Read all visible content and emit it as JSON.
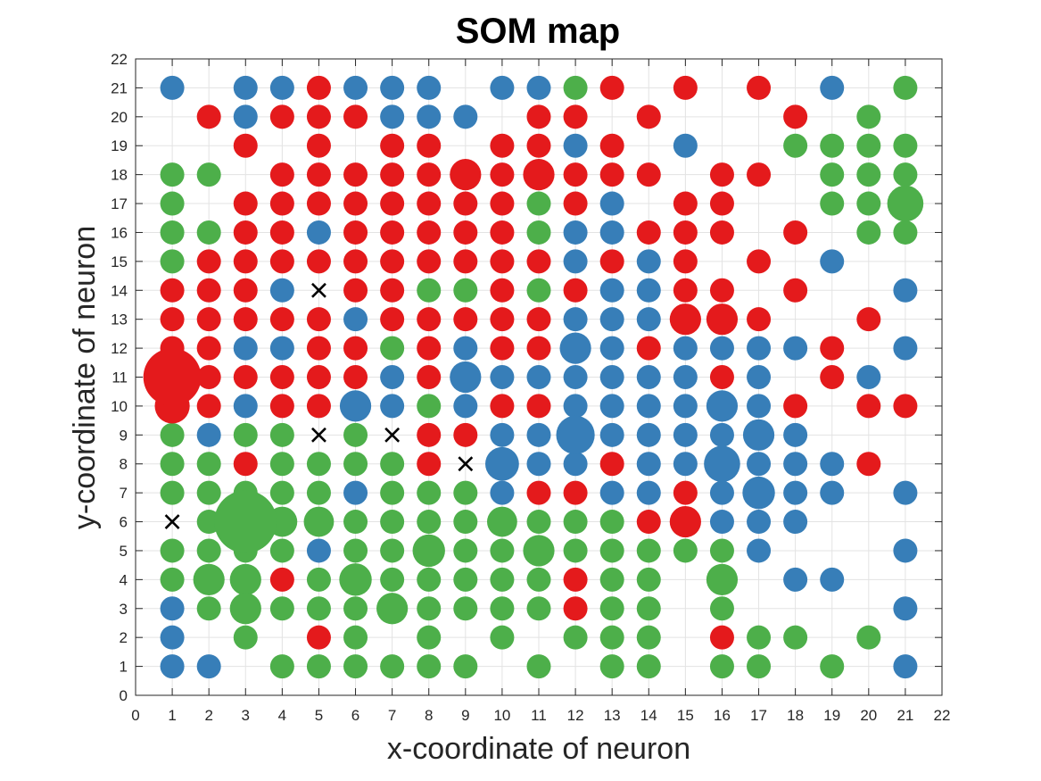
{
  "chart_data": {
    "type": "scatter",
    "title": "SOM map",
    "xlabel": "x-coordinate of neuron",
    "ylabel": "y-coordinate of neuron",
    "xlim": [
      0,
      22
    ],
    "ylim": [
      0,
      22
    ],
    "xticks": [
      0,
      1,
      2,
      3,
      4,
      5,
      6,
      7,
      8,
      9,
      10,
      11,
      12,
      13,
      14,
      15,
      16,
      17,
      18,
      19,
      20,
      21,
      22
    ],
    "yticks": [
      0,
      1,
      2,
      3,
      4,
      5,
      6,
      7,
      8,
      9,
      10,
      11,
      12,
      13,
      14,
      15,
      16,
      17,
      18,
      19,
      20,
      21,
      22
    ],
    "grid": true,
    "colors": {
      "R": "#e41a1c",
      "B": "#377eb8",
      "G": "#4daf4a",
      "x_marker": "#000000"
    },
    "class_rows": [
      {
        "y": 21,
        "cells": "B.BBRBBB.BBGR.R.R.B.G"
      },
      {
        "y": 20,
        "cells": ".RBRRRBBB.RR.R...R.G."
      },
      {
        "y": 19,
        "cells": "..R.R.RR.RRBR.B..GGGG"
      },
      {
        "y": 18,
        "cells": "GG.RRRRRRRRRRR.RR.GGG"
      },
      {
        "y": 17,
        "cells": "G.RRRRRRRRGRB.RR..GGG"
      },
      {
        "y": 16,
        "cells": "GGRRBRRRRRGBBRRR.R.GG"
      },
      {
        "y": 15,
        "cells": "GRRRRRRRRRRBRBR.R.B.."
      },
      {
        "y": 14,
        "cells": "RRRB.RRGGRGRBBRR.R..B"
      },
      {
        "y": 13,
        "cells": "RRRRRBRRRRRBBBRRR..R."
      },
      {
        "y": 12,
        "cells": "RRBBRRGRBRRBBRBBBBR.B"
      },
      {
        "y": 11,
        "cells": "RRRRRRBRBBBBBBBRB.RB."
      },
      {
        "y": 10,
        "cells": "RRBRRBBGBRRBBBBBBR.RR"
      },
      {
        "y": 9,
        "cells": "GBGG.G.RRBBBBBBBBB..."
      },
      {
        "y": 8,
        "cells": "GGRGGGGR.BBBRBBBBBBR."
      },
      {
        "y": 7,
        "cells": "GGGGGBGGGBRRBBRBBBB.B"
      },
      {
        "y": 6,
        "cells": ".GGGGGGGGGGGGRRBBB..."
      },
      {
        "y": 5,
        "cells": "GGGGBGGGGGGGGGGGB...B"
      },
      {
        "y": 4,
        "cells": "GGGRGGGGGGGRGG.G.BB.."
      },
      {
        "y": 3,
        "cells": "BGGGGGGGGGGRGG.G....B"
      },
      {
        "y": 2,
        "cells": "B.G.RG.G.G.GGG.RGG.G."
      },
      {
        "y": 1,
        "cells": "BB.GGGGGG.G.GG.GG.G.B"
      }
    ],
    "large_markers": [
      {
        "x": 1,
        "y": 11,
        "scale": 2.4
      },
      {
        "x": 3,
        "y": 6,
        "scale": 2.6
      },
      {
        "x": 1,
        "y": 10,
        "scale": 1.45
      },
      {
        "x": 9,
        "y": 18,
        "scale": 1.3
      },
      {
        "x": 11,
        "y": 18,
        "scale": 1.3
      },
      {
        "x": 21,
        "y": 17,
        "scale": 1.5
      },
      {
        "x": 15,
        "y": 13,
        "scale": 1.3
      },
      {
        "x": 16,
        "y": 13,
        "scale": 1.3
      },
      {
        "x": 12,
        "y": 12,
        "scale": 1.3
      },
      {
        "x": 9,
        "y": 11,
        "scale": 1.3
      },
      {
        "x": 6,
        "y": 10,
        "scale": 1.3
      },
      {
        "x": 16,
        "y": 10,
        "scale": 1.3
      },
      {
        "x": 12,
        "y": 9,
        "scale": 1.6
      },
      {
        "x": 17,
        "y": 9,
        "scale": 1.3
      },
      {
        "x": 10,
        "y": 8,
        "scale": 1.4
      },
      {
        "x": 16,
        "y": 8,
        "scale": 1.5
      },
      {
        "x": 17,
        "y": 7,
        "scale": 1.35
      },
      {
        "x": 4,
        "y": 6,
        "scale": 1.25
      },
      {
        "x": 5,
        "y": 6,
        "scale": 1.25
      },
      {
        "x": 10,
        "y": 6,
        "scale": 1.25
      },
      {
        "x": 15,
        "y": 6,
        "scale": 1.3
      },
      {
        "x": 8,
        "y": 5,
        "scale": 1.35
      },
      {
        "x": 11,
        "y": 5,
        "scale": 1.3
      },
      {
        "x": 2,
        "y": 4,
        "scale": 1.3
      },
      {
        "x": 3,
        "y": 4,
        "scale": 1.3
      },
      {
        "x": 6,
        "y": 4,
        "scale": 1.35
      },
      {
        "x": 16,
        "y": 4,
        "scale": 1.3
      },
      {
        "x": 3,
        "y": 3,
        "scale": 1.3
      },
      {
        "x": 7,
        "y": 3,
        "scale": 1.3
      }
    ],
    "empty_markers": [
      {
        "x": 5,
        "y": 14
      },
      {
        "x": 5,
        "y": 9
      },
      {
        "x": 7,
        "y": 9
      },
      {
        "x": 9,
        "y": 8
      },
      {
        "x": 1,
        "y": 6
      }
    ]
  }
}
